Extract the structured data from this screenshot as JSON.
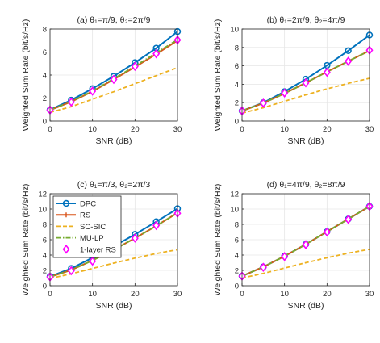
{
  "chart_data": [
    {
      "type": "line",
      "title": "(a) θ₁=π/9, θ₂=2π/9",
      "xlabel": "SNR (dB)",
      "ylabel": "Weighted Sum Rate (bit/s/Hz)",
      "xlim": [
        0,
        30
      ],
      "ylim": [
        0,
        8
      ],
      "xticks": [
        0,
        10,
        20,
        30
      ],
      "yticks": [
        0,
        2,
        4,
        6,
        8
      ],
      "grid": true,
      "x": [
        0,
        5,
        10,
        15,
        20,
        25,
        30
      ],
      "series": [
        {
          "name": "DPC",
          "values": [
            0.98,
            1.82,
            2.82,
            3.9,
            5.08,
            6.34,
            7.78
          ]
        },
        {
          "name": "RS",
          "values": [
            0.95,
            1.68,
            2.58,
            3.62,
            4.7,
            5.82,
            7.0
          ]
        },
        {
          "name": "SC-SIC",
          "values": [
            0.75,
            1.25,
            1.9,
            2.55,
            3.25,
            3.95,
            4.65
          ]
        },
        {
          "name": "MU-LP",
          "values": [
            0.95,
            1.7,
            2.62,
            3.68,
            4.78,
            5.92,
            7.08
          ]
        },
        {
          "name": "1-layer RS",
          "values": [
            0.96,
            1.65,
            2.6,
            3.62,
            4.75,
            5.85,
            7.05
          ]
        }
      ]
    },
    {
      "type": "line",
      "title": "(b) θ₁=2π/9, θ₂=4π/9",
      "xlabel": "SNR (dB)",
      "ylabel": "Weighted Sum Rate (bit/s/Hz)",
      "xlim": [
        0,
        30
      ],
      "ylim": [
        0,
        10
      ],
      "xticks": [
        0,
        10,
        20,
        30
      ],
      "yticks": [
        0,
        2,
        4,
        6,
        8,
        10
      ],
      "grid": true,
      "x": [
        0,
        5,
        10,
        15,
        20,
        25,
        30
      ],
      "series": [
        {
          "name": "DPC",
          "values": [
            1.1,
            2.0,
            3.2,
            4.55,
            6.05,
            7.65,
            9.35
          ]
        },
        {
          "name": "RS",
          "values": [
            1.1,
            1.95,
            3.0,
            4.15,
            5.35,
            6.5,
            7.65
          ]
        },
        {
          "name": "SC-SIC",
          "values": [
            0.85,
            1.45,
            2.15,
            2.85,
            3.5,
            4.1,
            4.65
          ]
        },
        {
          "name": "MU-LP",
          "values": [
            1.1,
            1.95,
            3.0,
            4.15,
            5.35,
            6.5,
            7.65
          ]
        },
        {
          "name": "1-layer RS",
          "values": [
            1.1,
            1.95,
            3.05,
            4.15,
            5.3,
            6.5,
            7.7
          ]
        }
      ]
    },
    {
      "type": "line",
      "title": "(c) θ₁=π/3, θ₂=2π/3",
      "xlabel": "SNR (dB)",
      "ylabel": "Weighted Sum Rate (bit/s/Hz)",
      "xlim": [
        0,
        30
      ],
      "ylim": [
        0,
        12
      ],
      "xticks": [
        0,
        10,
        20,
        30
      ],
      "yticks": [
        0,
        2,
        4,
        6,
        8,
        10,
        12
      ],
      "grid": true,
      "x": [
        0,
        5,
        10,
        15,
        20,
        25,
        30
      ],
      "series": [
        {
          "name": "DPC",
          "values": [
            1.2,
            2.25,
            3.65,
            5.15,
            6.7,
            8.35,
            10.05
          ]
        },
        {
          "name": "RS",
          "values": [
            1.15,
            2.05,
            3.3,
            4.7,
            6.2,
            7.8,
            9.5
          ]
        },
        {
          "name": "SC-SIC",
          "values": [
            0.95,
            1.55,
            2.25,
            2.95,
            3.6,
            4.2,
            4.7
          ]
        },
        {
          "name": "MU-LP",
          "values": [
            1.15,
            2.05,
            3.3,
            4.7,
            6.2,
            7.8,
            9.5
          ]
        },
        {
          "name": "1-layer RS",
          "values": [
            1.15,
            1.95,
            3.2,
            4.6,
            6.2,
            7.85,
            9.45
          ]
        }
      ],
      "legend": {
        "location": "top-left",
        "entries": [
          "DPC",
          "RS",
          "SC-SIC",
          "MU-LP",
          "1-layer RS"
        ]
      }
    },
    {
      "type": "line",
      "title": "(d) θ₁=4π/9, θ₂=8π/9",
      "xlabel": "SNR (dB)",
      "ylabel": "Weighted Sum Rate (bit/s/Hz)",
      "xlim": [
        0,
        30
      ],
      "ylim": [
        0,
        12
      ],
      "xticks": [
        0,
        10,
        20,
        30
      ],
      "yticks": [
        0,
        2,
        4,
        6,
        8,
        10,
        12
      ],
      "grid": true,
      "x": [
        0,
        5,
        10,
        15,
        20,
        25,
        30
      ],
      "series": [
        {
          "name": "DPC",
          "values": [
            1.25,
            2.45,
            3.85,
            5.4,
            7.05,
            8.7,
            10.35
          ]
        },
        {
          "name": "RS",
          "values": [
            1.25,
            2.45,
            3.85,
            5.4,
            7.05,
            8.7,
            10.35
          ]
        },
        {
          "name": "SC-SIC",
          "values": [
            1.0,
            1.6,
            2.3,
            3.0,
            3.65,
            4.25,
            4.75
          ]
        },
        {
          "name": "MU-LP",
          "values": [
            1.25,
            2.45,
            3.85,
            5.4,
            7.05,
            8.7,
            10.35
          ]
        },
        {
          "name": "1-layer RS",
          "values": [
            1.25,
            2.4,
            3.8,
            5.35,
            7.0,
            8.65,
            10.35
          ]
        }
      ]
    }
  ],
  "series_colors": {
    "DPC": "#0072bd",
    "RS": "#d95319",
    "SC-SIC": "#edb120",
    "MU-LP": "#77ac30",
    "1-layer RS": "#ff00ff"
  }
}
